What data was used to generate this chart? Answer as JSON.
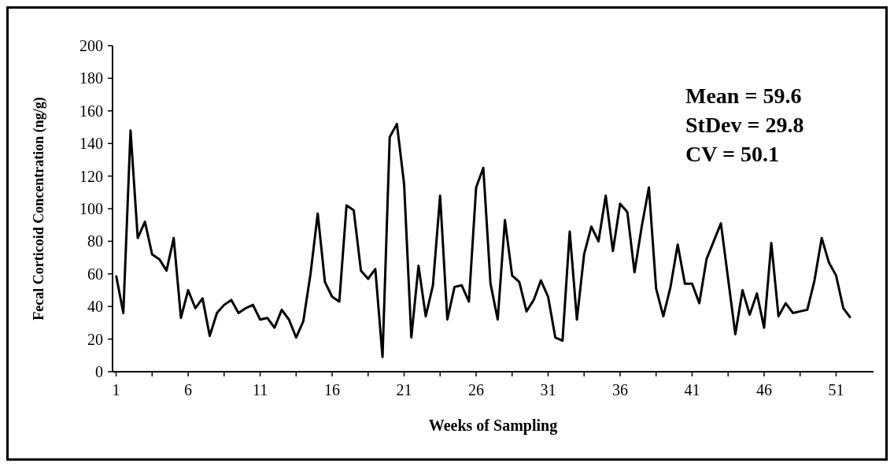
{
  "chart_data": {
    "type": "line",
    "xlabel": "Weeks of Sampling",
    "ylabel": "Fecal Corticoid Concentration (ng/g)",
    "annotations": [
      "Mean = 59.6",
      "StDev = 29.8",
      "CV = 50.1"
    ],
    "x": [
      1,
      1.5,
      2,
      2.5,
      3,
      3.5,
      4,
      4.5,
      5,
      5.5,
      6,
      6.5,
      7,
      7.5,
      8,
      8.5,
      9,
      9.5,
      10,
      10.5,
      11,
      11.5,
      12,
      12.5,
      13,
      13.5,
      14,
      14.5,
      15,
      15.5,
      16,
      16.5,
      17,
      17.5,
      18,
      18.5,
      19,
      19.5,
      20,
      20.5,
      21,
      21.5,
      22,
      22.5,
      23,
      23.5,
      24,
      24.5,
      25,
      25.5,
      26,
      26.5,
      27,
      27.5,
      28,
      28.5,
      29,
      29.5,
      30,
      30.5,
      31,
      31.5,
      32,
      32.5,
      33,
      33.5,
      34,
      34.5,
      35,
      35.5,
      36,
      36.5,
      37,
      37.5,
      38,
      38.5,
      39,
      39.5,
      40,
      40.5,
      41,
      41.5,
      42,
      42.5,
      43,
      43.5,
      44,
      44.5,
      45,
      45.5,
      46,
      46.5,
      47,
      47.5,
      48,
      48.5,
      49,
      49.5,
      50,
      50.5,
      51,
      51.5,
      52
    ],
    "series": [
      {
        "color": "#000000",
        "values": [
          59,
          36,
          148,
          82,
          92,
          72,
          69,
          62,
          82,
          33,
          50,
          39,
          45,
          22,
          36,
          41,
          44,
          36,
          39,
          41,
          32,
          33,
          27,
          38,
          32,
          21,
          31,
          60,
          97,
          55,
          46,
          43,
          102,
          99,
          62,
          57,
          63,
          9,
          144,
          152,
          115,
          21,
          65,
          34,
          53,
          108,
          32,
          52,
          53,
          43,
          113,
          125,
          54,
          32,
          93,
          59,
          55,
          37,
          44,
          56,
          46,
          21,
          19,
          86,
          32,
          72,
          89,
          80,
          108,
          74,
          103,
          98,
          61,
          89,
          113,
          51,
          34,
          52,
          78,
          54,
          54,
          42,
          69,
          80,
          91,
          57,
          23,
          50,
          35,
          48,
          27,
          79,
          34,
          42,
          36,
          37,
          38,
          56,
          82,
          67,
          59,
          39,
          33
        ]
      }
    ],
    "xlim": [
      0.75,
      53.6
    ],
    "ylim": [
      0,
      200
    ],
    "xticks": [
      1,
      {
        "value": 3.5,
        "label": null
      },
      6,
      {
        "value": 8.5,
        "label": null
      },
      11,
      {
        "value": 13.5,
        "label": null
      },
      16,
      {
        "value": 18.5,
        "label": null
      },
      21,
      {
        "value": 23.5,
        "label": null
      },
      26,
      {
        "value": 28.5,
        "label": null
      },
      31,
      {
        "value": 33.5,
        "label": null
      },
      36,
      {
        "value": 38.5,
        "label": null
      },
      41,
      {
        "value": 43.5,
        "label": null
      },
      46,
      {
        "value": 48.5,
        "label": null
      },
      51
    ],
    "yticks": [
      0,
      20,
      40,
      60,
      80,
      100,
      120,
      140,
      160,
      180,
      200
    ],
    "grid": false,
    "marker": "none",
    "line_style": "solid"
  }
}
